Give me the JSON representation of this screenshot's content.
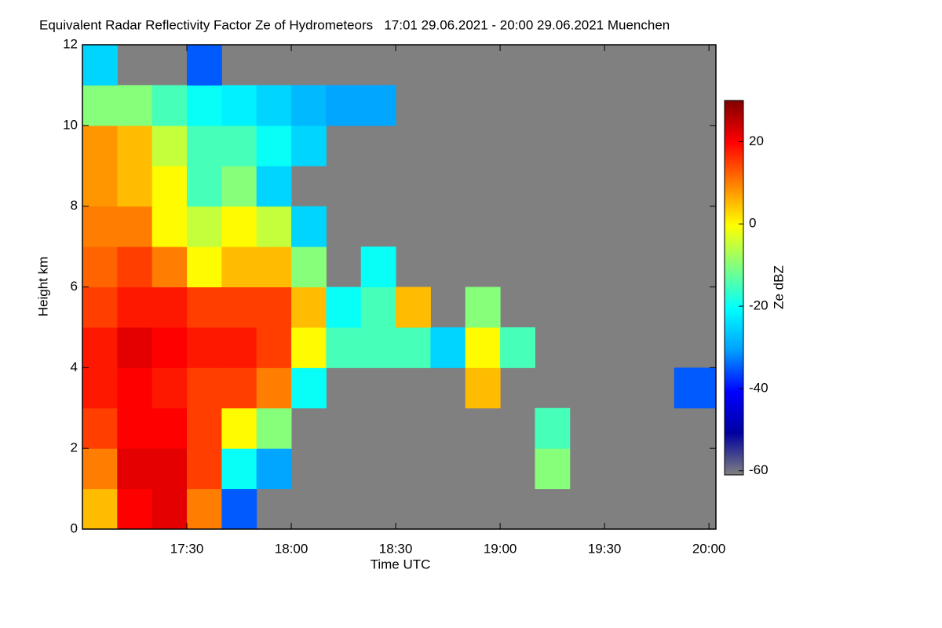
{
  "chart_data": {
    "type": "heatmap",
    "title": "Equivalent Radar Reflectivity Factor Ze of Hydrometeors   17:01 29.06.2021 - 20:00 29.06.2021 Muenchen",
    "x_label": "Time UTC",
    "y_label": "Height km",
    "colorbar_label": "Ze dBZ",
    "x": [
      "17:00",
      "17:10",
      "17:20",
      "17:30",
      "17:40",
      "17:50",
      "18:00",
      "18:10",
      "18:20",
      "18:30",
      "18:40",
      "18:50",
      "19:00",
      "19:10",
      "19:20",
      "19:30",
      "19:40",
      "19:50"
    ],
    "y": [
      0,
      1,
      2,
      3,
      4,
      5,
      6,
      7,
      8,
      9,
      10,
      11
    ],
    "z": [
      [
        5,
        20,
        22,
        10,
        -35,
        null,
        null,
        null,
        null,
        null,
        null,
        null,
        null,
        null,
        null,
        null,
        null,
        null
      ],
      [
        10,
        22,
        22,
        15,
        -20,
        -30,
        null,
        null,
        null,
        null,
        null,
        null,
        null,
        -10,
        null,
        null,
        null,
        null
      ],
      [
        15,
        20,
        20,
        15,
        0,
        -10,
        null,
        null,
        null,
        null,
        null,
        null,
        null,
        -15,
        null,
        null,
        null,
        null
      ],
      [
        18,
        20,
        18,
        15,
        15,
        10,
        -20,
        null,
        null,
        null,
        null,
        5,
        null,
        null,
        null,
        null,
        null,
        -35
      ],
      [
        18,
        22,
        20,
        18,
        18,
        15,
        0,
        -15,
        -15,
        -15,
        -25,
        0,
        -15,
        null,
        null,
        null,
        null,
        null
      ],
      [
        15,
        18,
        18,
        15,
        15,
        15,
        5,
        -20,
        -15,
        5,
        null,
        -10,
        null,
        null,
        null,
        null,
        null,
        null
      ],
      [
        12,
        15,
        10,
        0,
        5,
        5,
        -10,
        null,
        -20,
        null,
        null,
        null,
        null,
        null,
        null,
        null,
        null,
        null
      ],
      [
        10,
        10,
        0,
        -5,
        0,
        -5,
        -25,
        null,
        null,
        null,
        null,
        null,
        null,
        null,
        null,
        null,
        null,
        null
      ],
      [
        8,
        5,
        0,
        -15,
        -10,
        -25,
        null,
        null,
        null,
        null,
        null,
        null,
        null,
        null,
        null,
        null,
        null,
        null
      ],
      [
        8,
        5,
        -5,
        -15,
        -15,
        -20,
        -25,
        null,
        null,
        null,
        null,
        null,
        null,
        null,
        null,
        null,
        null,
        null
      ],
      [
        -10,
        -10,
        -15,
        -20,
        -22,
        -25,
        -28,
        -30,
        -30,
        null,
        null,
        null,
        null,
        null,
        null,
        null,
        null,
        null
      ],
      [
        -25,
        null,
        null,
        -35,
        null,
        null,
        null,
        null,
        null,
        null,
        null,
        null,
        null,
        null,
        null,
        null,
        null,
        null
      ]
    ],
    "xlim": [
      "17:00",
      "20:02"
    ],
    "xticks": [
      "17:30",
      "18:00",
      "18:30",
      "19:00",
      "19:30",
      "20:00"
    ],
    "ylim": [
      0,
      12
    ],
    "yticks": [
      0,
      2,
      4,
      6,
      8,
      10,
      12
    ],
    "zlim": [
      -61,
      30
    ],
    "zticks": [
      -60,
      -40,
      -20,
      0,
      20
    ],
    "colormap": [
      "#808080",
      "#0000a0",
      "#0000ff",
      "#00a0ff",
      "#00ffff",
      "#80ff80",
      "#ffff00",
      "#ff8000",
      "#ff0000",
      "#800000"
    ],
    "background": "#808080"
  }
}
